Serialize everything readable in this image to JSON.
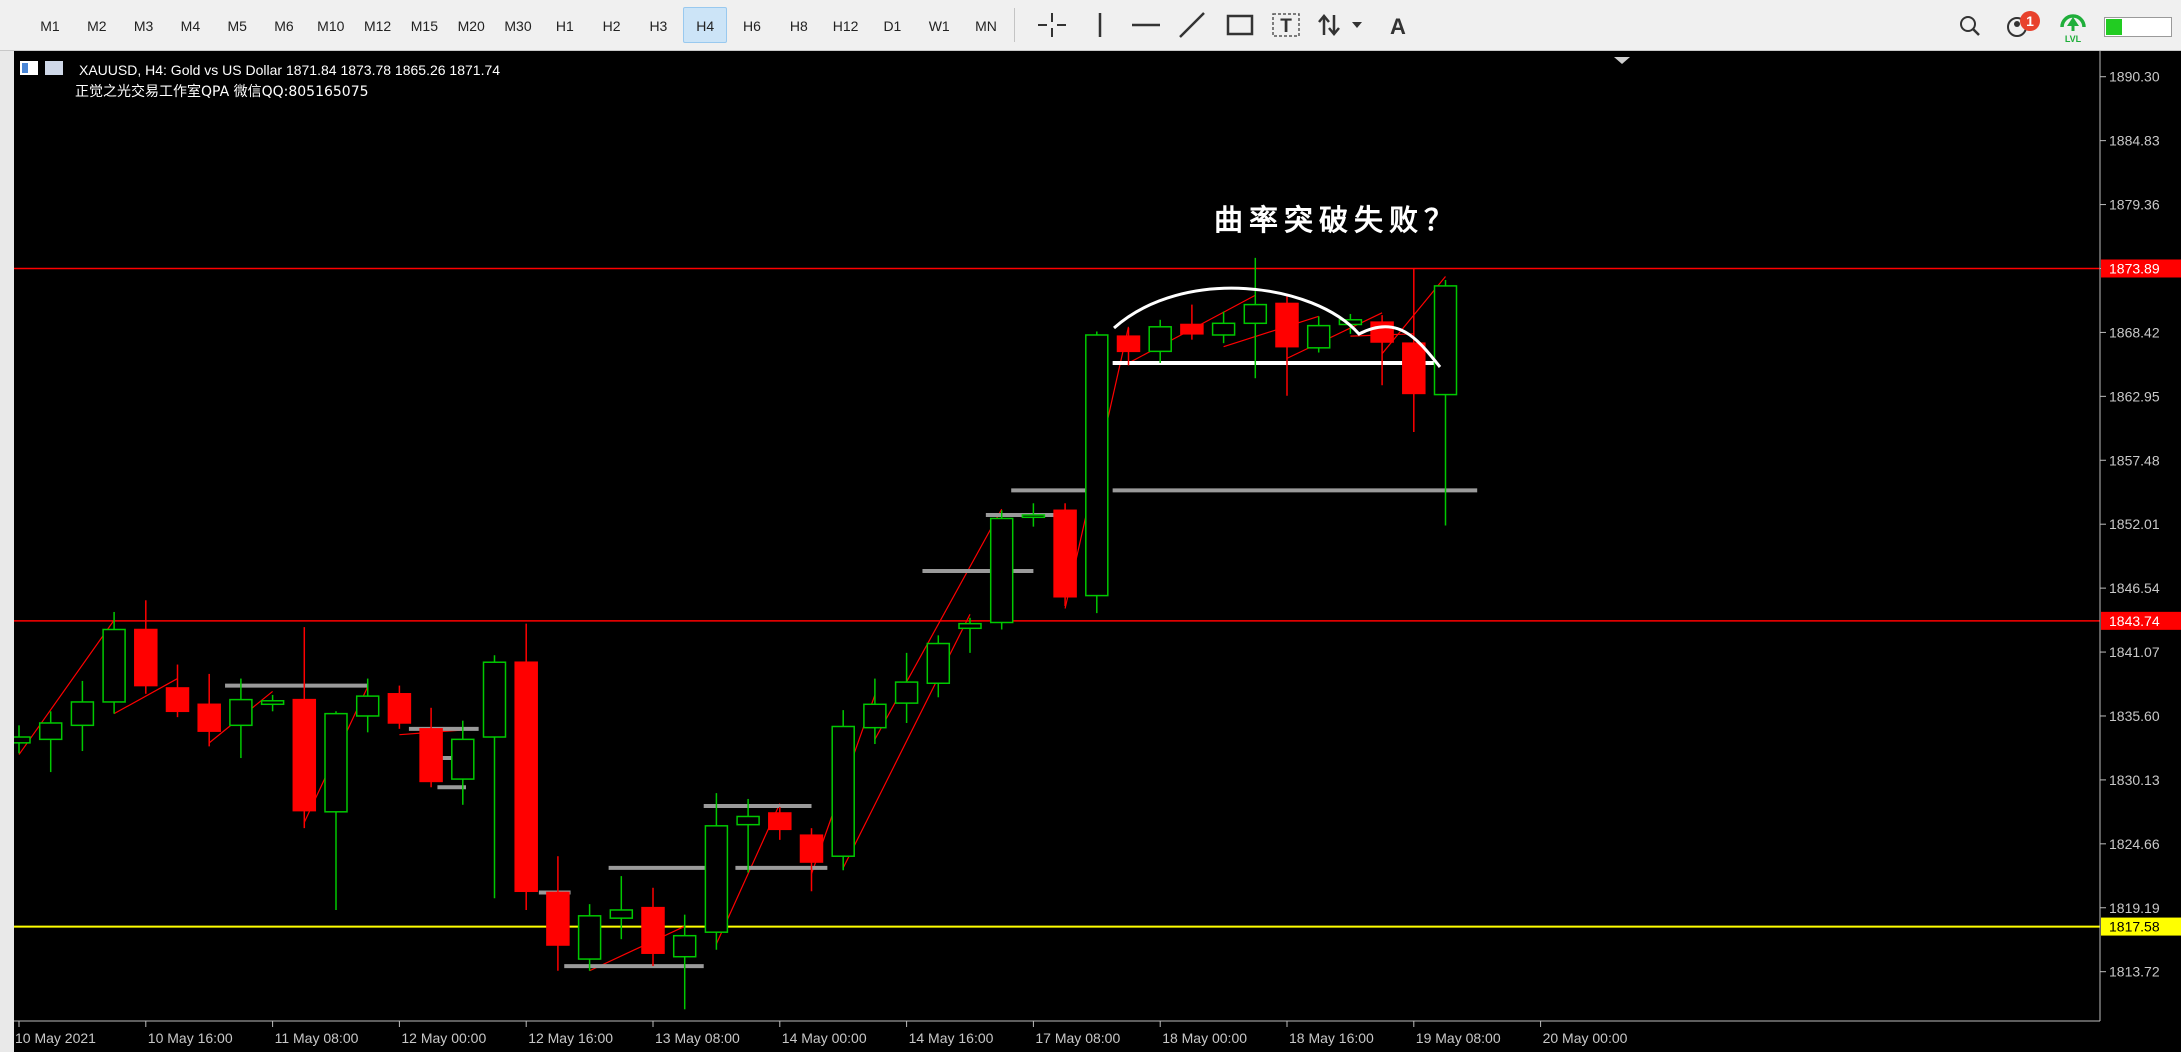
{
  "toolbar": {
    "timeframes": [
      "M1",
      "M2",
      "M3",
      "M4",
      "M5",
      "M6",
      "M10",
      "M12",
      "M15",
      "M20",
      "M30",
      "H1",
      "H2",
      "H3",
      "H4",
      "H6",
      "H8",
      "H12",
      "D1",
      "W1",
      "MN"
    ],
    "active_timeframe": "H4",
    "tools": [
      "crosshair-icon",
      "vertical-line-icon",
      "horizontal-line-icon",
      "trendline-icon",
      "rectangle-icon",
      "text-label-icon",
      "arrow-icon",
      "text-icon"
    ],
    "notification_count": "1",
    "lvl_label": "LVL"
  },
  "chart": {
    "symbol_line": "XAUUSD, H4:  Gold vs US Dollar  1871.84 1873.78 1865.26 1871.74",
    "watermark": "正觉之光交易工作室QPA 微信QQ:805165075",
    "annotation": "曲率突破失败？"
  },
  "chart_data": {
    "type": "candlestick",
    "symbol": "XAUUSD",
    "timeframe": "H4",
    "ylim": [
      1809.5,
      1892.5
    ],
    "price_ticks": [
      "1890.30",
      "1884.83",
      "1879.36",
      "1873.89",
      "1868.42",
      "1862.95",
      "1857.48",
      "1852.01",
      "1846.54",
      "1841.07",
      "1835.60",
      "1830.13",
      "1824.66",
      "1819.19",
      "1813.72"
    ],
    "time_labels": [
      "10 May 2021",
      "10 May 16:00",
      "11 May 08:00",
      "12 May 00:00",
      "12 May 16:00",
      "13 May 08:00",
      "14 May 00:00",
      "14 May 16:00",
      "17 May 08:00",
      "18 May 00:00",
      "18 May 16:00",
      "19 May 08:00",
      "20 May 00:00"
    ],
    "hlines": [
      {
        "price": 1873.89,
        "label": "1873.89",
        "color": "#ff0000"
      },
      {
        "price": 1843.74,
        "label": "1843.74",
        "color": "#ff0000"
      },
      {
        "price": 1817.58,
        "label": "1817.58",
        "color": "#ffff00"
      }
    ],
    "up_color": "#00c800",
    "down_color": "#ff0000",
    "candles": [
      {
        "o": 1833.3,
        "h": 1834.8,
        "l": 1832.4,
        "c": 1833.8
      },
      {
        "o": 1833.6,
        "h": 1836.0,
        "l": 1830.8,
        "c": 1835.0
      },
      {
        "o": 1834.8,
        "h": 1838.6,
        "l": 1832.6,
        "c": 1836.8
      },
      {
        "o": 1836.8,
        "h": 1844.5,
        "l": 1835.8,
        "c": 1843.0
      },
      {
        "o": 1843.0,
        "h": 1845.5,
        "l": 1837.5,
        "c": 1838.2
      },
      {
        "o": 1838.0,
        "h": 1840.0,
        "l": 1835.5,
        "c": 1836.0
      },
      {
        "o": 1836.6,
        "h": 1839.2,
        "l": 1833.0,
        "c": 1834.3
      },
      {
        "o": 1834.8,
        "h": 1838.8,
        "l": 1832.0,
        "c": 1837.0
      },
      {
        "o": 1836.6,
        "h": 1837.4,
        "l": 1836.0,
        "c": 1836.9
      },
      {
        "o": 1837.0,
        "h": 1843.2,
        "l": 1826.0,
        "c": 1827.5
      },
      {
        "o": 1827.4,
        "h": 1836.0,
        "l": 1819.0,
        "c": 1835.8
      },
      {
        "o": 1835.6,
        "h": 1838.8,
        "l": 1834.2,
        "c": 1837.3
      },
      {
        "o": 1837.5,
        "h": 1838.2,
        "l": 1834.5,
        "c": 1835.0
      },
      {
        "o": 1834.5,
        "h": 1836.3,
        "l": 1829.5,
        "c": 1830.0
      },
      {
        "o": 1830.2,
        "h": 1835.2,
        "l": 1828.0,
        "c": 1833.6
      },
      {
        "o": 1833.8,
        "h": 1840.8,
        "l": 1820.0,
        "c": 1840.2
      },
      {
        "o": 1840.2,
        "h": 1843.5,
        "l": 1819.0,
        "c": 1820.6
      },
      {
        "o": 1820.5,
        "h": 1823.6,
        "l": 1813.8,
        "c": 1816.0
      },
      {
        "o": 1814.8,
        "h": 1819.5,
        "l": 1813.8,
        "c": 1818.5
      },
      {
        "o": 1818.3,
        "h": 1821.9,
        "l": 1816.5,
        "c": 1819.0
      },
      {
        "o": 1819.2,
        "h": 1820.9,
        "l": 1814.2,
        "c": 1815.3
      },
      {
        "o": 1815.0,
        "h": 1818.6,
        "l": 1810.5,
        "c": 1816.8
      },
      {
        "o": 1817.1,
        "h": 1829.0,
        "l": 1815.6,
        "c": 1826.2
      },
      {
        "o": 1826.3,
        "h": 1828.5,
        "l": 1822.2,
        "c": 1827.0
      },
      {
        "o": 1827.3,
        "h": 1827.8,
        "l": 1825.0,
        "c": 1825.9
      },
      {
        "o": 1825.4,
        "h": 1826.0,
        "l": 1820.6,
        "c": 1823.1
      },
      {
        "o": 1823.6,
        "h": 1836.1,
        "l": 1822.4,
        "c": 1834.7
      },
      {
        "o": 1834.6,
        "h": 1838.8,
        "l": 1833.2,
        "c": 1836.6
      },
      {
        "o": 1836.7,
        "h": 1841.0,
        "l": 1835.0,
        "c": 1838.5
      },
      {
        "o": 1838.4,
        "h": 1842.5,
        "l": 1837.2,
        "c": 1841.8
      },
      {
        "o": 1843.1,
        "h": 1844.0,
        "l": 1841.0,
        "c": 1843.5
      },
      {
        "o": 1843.6,
        "h": 1853.2,
        "l": 1843.0,
        "c": 1852.5
      },
      {
        "o": 1852.6,
        "h": 1853.8,
        "l": 1851.8,
        "c": 1852.8
      },
      {
        "o": 1853.2,
        "h": 1853.8,
        "l": 1845.0,
        "c": 1845.8
      },
      {
        "o": 1845.9,
        "h": 1868.5,
        "l": 1844.4,
        "c": 1868.2
      },
      {
        "o": 1868.1,
        "h": 1868.8,
        "l": 1865.6,
        "c": 1866.8
      },
      {
        "o": 1866.8,
        "h": 1869.5,
        "l": 1865.8,
        "c": 1868.9
      },
      {
        "o": 1869.1,
        "h": 1870.8,
        "l": 1867.8,
        "c": 1868.3
      },
      {
        "o": 1868.2,
        "h": 1870.2,
        "l": 1867.5,
        "c": 1869.2
      },
      {
        "o": 1869.2,
        "h": 1874.8,
        "l": 1864.5,
        "c": 1870.8
      },
      {
        "o": 1870.9,
        "h": 1871.5,
        "l": 1863.0,
        "c": 1867.2
      },
      {
        "o": 1867.1,
        "h": 1869.8,
        "l": 1866.7,
        "c": 1869.0
      },
      {
        "o": 1869.1,
        "h": 1870.0,
        "l": 1868.3,
        "c": 1869.5
      },
      {
        "o": 1869.3,
        "h": 1869.9,
        "l": 1863.9,
        "c": 1867.6
      },
      {
        "o": 1867.5,
        "h": 1873.9,
        "l": 1859.9,
        "c": 1863.2
      },
      {
        "o": 1863.1,
        "h": 1872.9,
        "l": 1851.9,
        "c": 1872.4
      }
    ],
    "gray_levels": [
      {
        "i0": 6.5,
        "i1": 11.0,
        "price": 1838.2
      },
      {
        "i0": 12.3,
        "i1": 14.5,
        "price": 1834.5
      },
      {
        "i0": 13.2,
        "i1": 14.1,
        "price": 1832.0
      },
      {
        "i0": 13.2,
        "i1": 14.1,
        "price": 1829.5
      },
      {
        "i0": 16.4,
        "i1": 17.4,
        "price": 1820.5
      },
      {
        "i0": 18.6,
        "i1": 22.0,
        "price": 1822.6
      },
      {
        "i0": 17.2,
        "i1": 21.6,
        "price": 1814.2
      },
      {
        "i0": 21.6,
        "i1": 25.0,
        "price": 1827.9
      },
      {
        "i0": 22.6,
        "i1": 25.5,
        "price": 1822.6
      },
      {
        "i0": 28.5,
        "i1": 32.0,
        "price": 1848.0
      },
      {
        "i0": 30.5,
        "i1": 33.0,
        "price": 1852.8
      },
      {
        "i0": 31.3,
        "i1": 34.0,
        "price": 1854.9
      },
      {
        "i0": 34.5,
        "i1": 46.0,
        "price": 1854.9
      }
    ],
    "white_levels": [
      {
        "i0": 34.5,
        "i1": 45.2,
        "price": 1865.8
      }
    ]
  }
}
